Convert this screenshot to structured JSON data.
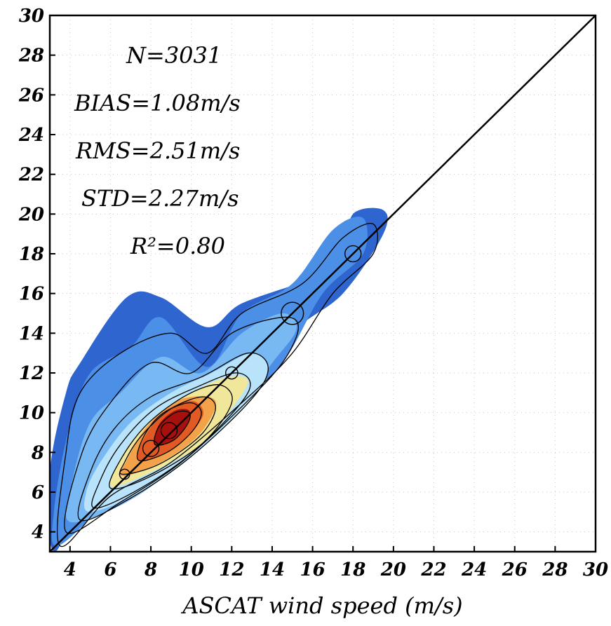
{
  "chart_data": {
    "type": "heatmap",
    "title": "",
    "xlabel": "ASCAT wind speed (m/s)",
    "ylabel": "",
    "xlim": [
      3,
      30
    ],
    "ylim": [
      3,
      30
    ],
    "xticks": [
      "4",
      "6",
      "8",
      "10",
      "12",
      "14",
      "16",
      "18",
      "20",
      "22",
      "24",
      "26",
      "28",
      "30"
    ],
    "yticks": [
      "4",
      "6",
      "8",
      "10",
      "12",
      "14",
      "16",
      "18",
      "20",
      "22",
      "24",
      "26",
      "28",
      "30"
    ],
    "grid": true,
    "one_to_one_line": true,
    "annotations": {
      "n": "N=3031",
      "bias": "BIAS=1.08m/s",
      "rms": "RMS=2.51m/s",
      "std": "STD=2.27m/s",
      "r2": "R²=0.80"
    },
    "density_levels": [
      1,
      2,
      3,
      4,
      5,
      6,
      7,
      8
    ],
    "density_colors": [
      "#2f65cf",
      "#4b8fe6",
      "#78b9f3",
      "#b8e3fb",
      "#f1e79a",
      "#f4a24a",
      "#e15a23",
      "#a8100e"
    ],
    "density_blobs": [
      {
        "level": 1,
        "points": [
          [
            3.2,
            3.0
          ],
          [
            5.0,
            6.0
          ],
          [
            9.0,
            8.0
          ],
          [
            12.0,
            10.0
          ],
          [
            15.0,
            14.0
          ],
          [
            17.5,
            16.0
          ],
          [
            19.5,
            19.0
          ],
          [
            19.5,
            20.2
          ],
          [
            18.0,
            20.0
          ],
          [
            17.5,
            18.0
          ],
          [
            16.0,
            16.8
          ],
          [
            12.5,
            15.5
          ],
          [
            10.8,
            14.3
          ],
          [
            8.5,
            15.8
          ],
          [
            6.8,
            15.8
          ],
          [
            4.5,
            12.5
          ],
          [
            3.8,
            11.0
          ],
          [
            3.0,
            7.0
          ]
        ]
      },
      {
        "level": 2,
        "points": [
          [
            3.4,
            3.3
          ],
          [
            6.0,
            5.5
          ],
          [
            9.0,
            7.0
          ],
          [
            12.0,
            10.2
          ],
          [
            14.5,
            12.5
          ],
          [
            16.5,
            16.0
          ],
          [
            18.5,
            18.0
          ],
          [
            18.5,
            19.8
          ],
          [
            17.0,
            19.2
          ],
          [
            15.0,
            16.5
          ],
          [
            12.5,
            15.0
          ],
          [
            10.8,
            12.3
          ],
          [
            8.5,
            14.8
          ],
          [
            7.0,
            13.3
          ],
          [
            5.0,
            12.0
          ],
          [
            3.9,
            9.0
          ],
          [
            3.2,
            5.0
          ]
        ]
      },
      {
        "level": 3,
        "points": [
          [
            4.0,
            4.5
          ],
          [
            6.8,
            5.5
          ],
          [
            9.5,
            7.5
          ],
          [
            12.5,
            10.5
          ],
          [
            14.0,
            12.5
          ],
          [
            15.2,
            14.2
          ],
          [
            14.5,
            15.0
          ],
          [
            12.5,
            14.0
          ],
          [
            10.5,
            12.0
          ],
          [
            8.5,
            12.8
          ],
          [
            6.5,
            11.0
          ],
          [
            5.0,
            9.5
          ],
          [
            4.1,
            6.5
          ]
        ]
      },
      {
        "level": 4,
        "points": [
          [
            5.0,
            5.0
          ],
          [
            7.5,
            6.0
          ],
          [
            10.0,
            7.8
          ],
          [
            12.5,
            10.2
          ],
          [
            13.8,
            12.0
          ],
          [
            13.0,
            13.0
          ],
          [
            11.0,
            12.0
          ],
          [
            9.0,
            11.0
          ],
          [
            7.0,
            9.5
          ],
          [
            5.5,
            7.5
          ],
          [
            4.8,
            6.0
          ]
        ]
      },
      {
        "level": 5,
        "points": [
          [
            6.0,
            6.3
          ],
          [
            8.0,
            7.0
          ],
          [
            10.5,
            8.4
          ],
          [
            12.0,
            10.2
          ],
          [
            12.8,
            11.6
          ],
          [
            11.8,
            11.8
          ],
          [
            10.0,
            11.0
          ],
          [
            8.2,
            9.8
          ],
          [
            6.8,
            8.2
          ]
        ]
      },
      {
        "level": 6,
        "points": [
          [
            6.6,
            6.8
          ],
          [
            8.5,
            7.5
          ],
          [
            10.3,
            8.8
          ],
          [
            11.2,
            10.3
          ],
          [
            10.8,
            10.8
          ],
          [
            9.3,
            10.6
          ],
          [
            7.8,
            9.3
          ],
          [
            6.8,
            7.6
          ]
        ]
      },
      {
        "level": 7,
        "points": [
          [
            7.4,
            7.6
          ],
          [
            8.8,
            8.0
          ],
          [
            10.0,
            9.0
          ],
          [
            10.6,
            10.0
          ],
          [
            10.0,
            10.6
          ],
          [
            8.6,
            10.0
          ],
          [
            7.6,
            8.6
          ]
        ]
      },
      {
        "level": 8,
        "points": [
          [
            8.2,
            8.4
          ],
          [
            9.1,
            8.6
          ],
          [
            9.8,
            9.4
          ],
          [
            9.9,
            10.1
          ],
          [
            9.2,
            10.1
          ],
          [
            8.4,
            9.4
          ]
        ]
      }
    ],
    "contours": [
      [
        [
          3.5,
          3.3
        ],
        [
          6.0,
          5.8
        ],
        [
          9.0,
          7.5
        ],
        [
          12.5,
          10.5
        ],
        [
          15.0,
          13.0
        ],
        [
          17.0,
          16.0
        ],
        [
          19.0,
          18.0
        ],
        [
          19.0,
          19.5
        ],
        [
          17.5,
          18.8
        ],
        [
          15.5,
          16.5
        ],
        [
          12.5,
          15.0
        ],
        [
          10.8,
          13.0
        ],
        [
          9.0,
          14.0
        ],
        [
          6.5,
          13.0
        ],
        [
          4.5,
          11.0
        ],
        [
          3.8,
          8.0
        ]
      ],
      [
        [
          3.8,
          4.0
        ],
        [
          6.5,
          5.5
        ],
        [
          9.5,
          7.5
        ],
        [
          12.5,
          10.3
        ],
        [
          14.5,
          12.5
        ],
        [
          15.3,
          14.3
        ],
        [
          14.5,
          14.8
        ],
        [
          12.0,
          14.0
        ],
        [
          10.0,
          12.0
        ],
        [
          8.0,
          12.5
        ],
        [
          6.0,
          10.5
        ],
        [
          4.6,
          8.0
        ]
      ],
      [
        [
          4.5,
          4.6
        ],
        [
          7.0,
          5.7
        ],
        [
          10.0,
          7.8
        ],
        [
          13.0,
          10.7
        ],
        [
          13.8,
          12.3
        ],
        [
          12.8,
          13.0
        ],
        [
          10.5,
          11.8
        ],
        [
          8.0,
          10.8
        ],
        [
          6.2,
          9.2
        ],
        [
          5.0,
          7.0
        ]
      ],
      [
        [
          5.2,
          5.2
        ],
        [
          7.5,
          6.2
        ],
        [
          10.3,
          8.2
        ],
        [
          12.8,
          11.0
        ],
        [
          12.3,
          12.0
        ],
        [
          10.3,
          11.3
        ],
        [
          8.2,
          10.2
        ],
        [
          6.5,
          8.4
        ],
        [
          5.5,
          6.6
        ]
      ],
      [
        [
          6.0,
          6.2
        ],
        [
          8.0,
          6.8
        ],
        [
          10.6,
          8.5
        ],
        [
          12.0,
          10.5
        ],
        [
          11.4,
          11.4
        ],
        [
          9.8,
          10.9
        ],
        [
          7.9,
          9.5
        ],
        [
          6.6,
          7.8
        ]
      ],
      [
        [
          6.6,
          6.9
        ],
        [
          8.4,
          7.4
        ],
        [
          10.4,
          8.8
        ],
        [
          11.2,
          10.2
        ],
        [
          10.6,
          10.8
        ],
        [
          9.0,
          10.2
        ],
        [
          7.5,
          8.8
        ],
        [
          6.7,
          7.5
        ]
      ],
      [
        [
          7.4,
          7.6
        ],
        [
          8.8,
          8.0
        ],
        [
          10.0,
          9.0
        ],
        [
          10.5,
          10.0
        ],
        [
          9.9,
          10.5
        ],
        [
          8.5,
          9.9
        ],
        [
          7.6,
          8.7
        ]
      ],
      [
        [
          8.2,
          8.4
        ],
        [
          9.1,
          8.6
        ],
        [
          9.8,
          9.4
        ],
        [
          9.9,
          10.0
        ],
        [
          9.2,
          10.0
        ],
        [
          8.4,
          9.3
        ]
      ]
    ],
    "circles": [
      {
        "x": 6.7,
        "y": 6.9,
        "r": 0.25
      },
      {
        "x": 8.0,
        "y": 8.2,
        "r": 0.4
      },
      {
        "x": 8.9,
        "y": 9.1,
        "r": 0.4
      },
      {
        "x": 12.0,
        "y": 12.0,
        "r": 0.3
      },
      {
        "x": 15.0,
        "y": 15.0,
        "r": 0.55
      },
      {
        "x": 18.0,
        "y": 18.0,
        "r": 0.4
      }
    ]
  }
}
